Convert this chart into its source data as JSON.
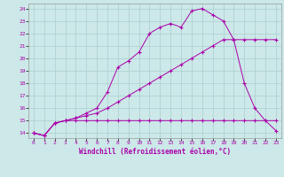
{
  "xlabel": "Windchill (Refroidissement éolien,°C)",
  "background_color": "#cce8e8",
  "grid_color": "#aacfcf",
  "line_color": "#aa00aa",
  "xlim": [
    -0.5,
    23.5
  ],
  "ylim": [
    13.6,
    24.4
  ],
  "yticks": [
    14,
    15,
    16,
    17,
    18,
    19,
    20,
    21,
    22,
    23,
    24
  ],
  "xticks": [
    0,
    1,
    2,
    3,
    4,
    5,
    6,
    7,
    8,
    9,
    10,
    11,
    12,
    13,
    14,
    15,
    16,
    17,
    18,
    19,
    20,
    21,
    22,
    23
  ],
  "line1_x": [
    0,
    1,
    2,
    3,
    4,
    5,
    6,
    7,
    8,
    9,
    10,
    11,
    12,
    13,
    14,
    15,
    16,
    17,
    18,
    19,
    20,
    21,
    22,
    23
  ],
  "line1_y": [
    14.0,
    13.8,
    14.8,
    15.0,
    15.0,
    15.0,
    15.0,
    15.0,
    15.0,
    15.0,
    15.0,
    15.0,
    15.0,
    15.0,
    15.0,
    15.0,
    15.0,
    15.0,
    15.0,
    15.0,
    15.0,
    15.0,
    15.0,
    15.0
  ],
  "line2_x": [
    0,
    1,
    2,
    3,
    4,
    5,
    6,
    7,
    8,
    9,
    10,
    11,
    12,
    13,
    14,
    15,
    16,
    17,
    18,
    19,
    20,
    21,
    22,
    23
  ],
  "line2_y": [
    14.0,
    13.8,
    14.8,
    15.0,
    15.2,
    15.4,
    15.6,
    16.0,
    16.5,
    17.0,
    17.5,
    18.0,
    18.5,
    19.0,
    19.5,
    20.0,
    20.5,
    21.0,
    21.5,
    21.5,
    21.5,
    21.5,
    21.5,
    21.5
  ],
  "line3_x": [
    0,
    1,
    2,
    3,
    4,
    5,
    6,
    7,
    8,
    9,
    10,
    11,
    12,
    13,
    14,
    15,
    16,
    17,
    18,
    19,
    20,
    21,
    22,
    23
  ],
  "line3_y": [
    14.0,
    13.8,
    14.8,
    15.0,
    15.2,
    15.6,
    16.0,
    17.3,
    19.3,
    19.8,
    20.5,
    22.0,
    22.5,
    22.8,
    22.5,
    23.8,
    24.0,
    23.5,
    23.0,
    21.5,
    18.0,
    16.0,
    15.0,
    14.2
  ]
}
